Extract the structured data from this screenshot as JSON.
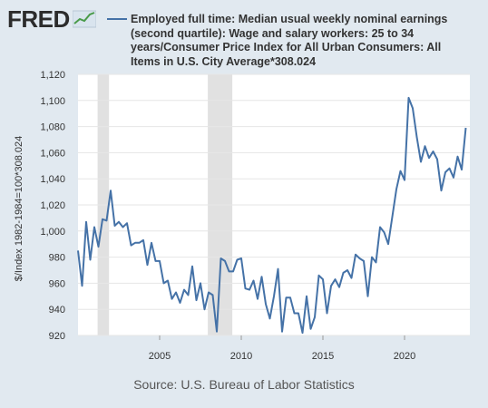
{
  "brand": {
    "name": "FRED",
    "logo_icon": "trend-line-icon"
  },
  "legend": {
    "text": "Employed full time: Median usual weekly nominal earnings (second quartile): Wage and salary workers: 25 to 34 years/Consumer Price Index for All Urban Consumers: All Items in U.S. City Average*308.024",
    "color": "#4572a7"
  },
  "source": "Source: U.S. Bureau of Labor Statistics",
  "chart_data": {
    "type": "line",
    "title": "",
    "xlabel": "",
    "ylabel": "$/Index 1982-1984=100*308.024",
    "xlim": [
      2000.0,
      2024.0
    ],
    "ylim": [
      920,
      1120
    ],
    "y_ticks": [
      920,
      940,
      960,
      980,
      1000,
      1020,
      1040,
      1060,
      1080,
      1100,
      1120
    ],
    "x_ticks": [
      2005,
      2010,
      2015,
      2020
    ],
    "grid": "horizontal",
    "recession_bands": [
      [
        2001.2,
        2001.9
      ],
      [
        2007.95,
        2009.45
      ]
    ],
    "series": [
      {
        "color": "#4572a7",
        "x": [
          2000.0,
          2000.25,
          2000.5,
          2000.75,
          2001.0,
          2001.25,
          2001.5,
          2001.75,
          2002.0,
          2002.25,
          2002.5,
          2002.75,
          2003.0,
          2003.25,
          2003.5,
          2003.75,
          2004.0,
          2004.25,
          2004.5,
          2004.75,
          2005.0,
          2005.25,
          2005.5,
          2005.75,
          2006.0,
          2006.25,
          2006.5,
          2006.75,
          2007.0,
          2007.25,
          2007.5,
          2007.75,
          2008.0,
          2008.25,
          2008.5,
          2008.75,
          2009.0,
          2009.25,
          2009.5,
          2009.75,
          2010.0,
          2010.25,
          2010.5,
          2010.75,
          2011.0,
          2011.25,
          2011.5,
          2011.75,
          2012.0,
          2012.25,
          2012.5,
          2012.75,
          2013.0,
          2013.25,
          2013.5,
          2013.75,
          2014.0,
          2014.25,
          2014.5,
          2014.75,
          2015.0,
          2015.25,
          2015.5,
          2015.75,
          2016.0,
          2016.25,
          2016.5,
          2016.75,
          2017.0,
          2017.25,
          2017.5,
          2017.75,
          2018.0,
          2018.25,
          2018.5,
          2018.75,
          2019.0,
          2019.25,
          2019.5,
          2019.75,
          2020.0,
          2020.25,
          2020.5,
          2020.75,
          2021.0,
          2021.25,
          2021.5,
          2021.75,
          2022.0,
          2022.25,
          2022.5,
          2022.75,
          2023.0,
          2023.25,
          2023.5,
          2023.75
        ],
        "values": [
          985,
          958,
          1007,
          978,
          1003,
          988,
          1009,
          1008,
          1031,
          1004,
          1007,
          1003,
          1006,
          989,
          991,
          991,
          993,
          974,
          991,
          977,
          977,
          960,
          962,
          948,
          953,
          945,
          955,
          951,
          973,
          947,
          960,
          940,
          953,
          951,
          923,
          979,
          977,
          969,
          969,
          978,
          979,
          956,
          955,
          962,
          948,
          965,
          944,
          933,
          950,
          971,
          923,
          949,
          949,
          937,
          937,
          922,
          950,
          925,
          934,
          966,
          963,
          937,
          958,
          963,
          957,
          968,
          970,
          964,
          982,
          979,
          977,
          950,
          980,
          976,
          1003,
          999,
          990,
          1011,
          1032,
          1046,
          1039,
          1102,
          1094,
          1072,
          1053,
          1065,
          1056,
          1061,
          1055,
          1031,
          1045,
          1048,
          1041,
          1057,
          1047,
          1079
        ]
      }
    ]
  }
}
